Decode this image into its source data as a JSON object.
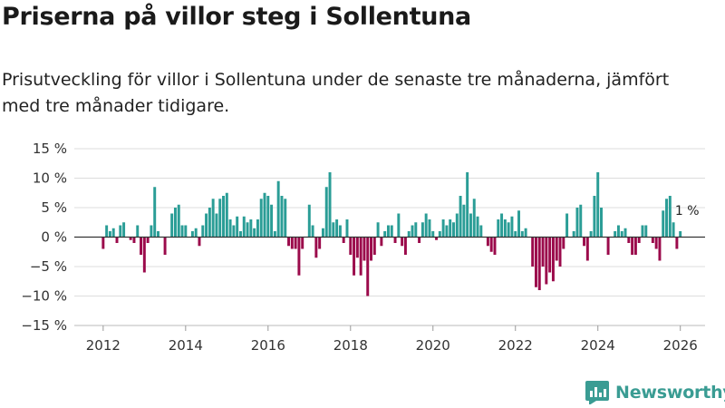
{
  "title": "Priserna på villor steg i Sollentuna",
  "subtitle": "Prisutveckling för villor i Sollentuna under de senaste tre månaderna, jämfört med tre månader tidigare.",
  "brand": {
    "name": "Newsworthy",
    "logo_icon": "bar-chart-logo-icon"
  },
  "colors": {
    "positive": "#2a9d96",
    "negative": "#9b0a4b",
    "zero_line": "#333333",
    "grid": "#dddddd"
  },
  "chart_data": {
    "type": "bar",
    "title": "Priserna på villor steg i Sollentuna",
    "xlabel": "",
    "ylabel": "",
    "xlim": [
      2011.3,
      2026.6
    ],
    "ylim": [
      -15,
      15
    ],
    "grid": true,
    "y_ticks": [
      {
        "value": 15,
        "label": "15 %"
      },
      {
        "value": 10,
        "label": "10 %"
      },
      {
        "value": 5,
        "label": "5 %"
      },
      {
        "value": 0,
        "label": "0 %"
      },
      {
        "value": -5,
        "label": "−5 %"
      },
      {
        "value": -10,
        "label": "−10 %"
      },
      {
        "value": -15,
        "label": "−15 %"
      }
    ],
    "x_ticks": [
      {
        "value": 2012,
        "label": "2012"
      },
      {
        "value": 2014,
        "label": "2014"
      },
      {
        "value": 2016,
        "label": "2016"
      },
      {
        "value": 2018,
        "label": "2018"
      },
      {
        "value": 2020,
        "label": "2020"
      },
      {
        "value": 2022,
        "label": "2022"
      },
      {
        "value": 2024,
        "label": "2024"
      },
      {
        "value": 2026,
        "label": "2026"
      }
    ],
    "start": 2012.0,
    "step": 0.08333,
    "values": [
      -2,
      2,
      1,
      1.5,
      -1,
      2,
      2.5,
      0,
      -0.5,
      -1,
      2,
      -3,
      -6,
      -1,
      2,
      8.5,
      1,
      0,
      -3,
      0,
      4,
      5,
      5.5,
      2,
      2,
      0,
      1,
      1.5,
      -1.5,
      2,
      4,
      5,
      6.5,
      4,
      6.5,
      7,
      7.5,
      3,
      2,
      3.5,
      1,
      3.5,
      2.5,
      3,
      1.5,
      3,
      6.5,
      7.5,
      7,
      5.5,
      1,
      9.5,
      7,
      6.5,
      -1.5,
      -2,
      -2,
      -6.5,
      -2,
      0,
      5.5,
      2,
      -3.5,
      -2,
      1.5,
      8.5,
      11,
      2.5,
      3,
      2,
      -1,
      3,
      -3,
      -6.5,
      -3.5,
      -6.5,
      -4,
      -10,
      -4,
      -3,
      2.5,
      -1.5,
      1,
      2,
      2,
      -1,
      4,
      -1.5,
      -3,
      1,
      2,
      2.5,
      -1,
      2.5,
      4,
      3,
      1,
      -0.5,
      1,
      3,
      2,
      3,
      2.5,
      4,
      7,
      5.5,
      11,
      4,
      6.5,
      3.5,
      2,
      0,
      -1.5,
      -2.5,
      -3,
      3,
      4,
      3,
      2.5,
      3.5,
      1,
      4.5,
      1,
      1.5,
      0,
      -5,
      -8.5,
      -9,
      -5,
      -8,
      -6,
      -7.5,
      -4,
      -5,
      -2,
      4,
      0,
      1,
      5,
      5.5,
      -1.5,
      -4,
      1,
      7,
      11,
      5,
      0,
      -3,
      0,
      1,
      2,
      1,
      1.5,
      -1,
      -3,
      -3,
      -1,
      2,
      2,
      0,
      -1,
      -2,
      -4,
      4.5,
      6.5,
      7,
      2.5,
      -2,
      1
    ],
    "annotations": [
      {
        "x": 2025.917,
        "y": 1,
        "text": "1 %"
      }
    ]
  }
}
